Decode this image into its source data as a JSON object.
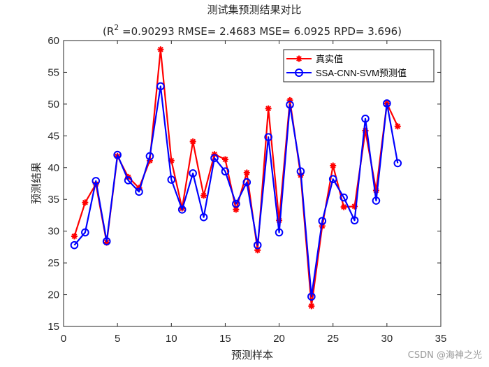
{
  "chart_data": {
    "type": "line",
    "title": "测试集预测结果对比",
    "subtitle_prefix": "(R",
    "subtitle_exp": "2",
    "subtitle_rest": " =0.90293 RMSE= 2.4683 MSE= 6.0925 RPD= 3.696)",
    "xlabel": "预测样本",
    "ylabel": "预测结果",
    "xlim": [
      0,
      35
    ],
    "ylim": [
      15,
      60
    ],
    "xticks": [
      0,
      5,
      10,
      15,
      20,
      25,
      30,
      35
    ],
    "yticks": [
      15,
      20,
      25,
      30,
      35,
      40,
      45,
      50,
      55,
      60
    ],
    "legend_position": "top-right",
    "x": [
      1,
      2,
      3,
      4,
      5,
      6,
      7,
      8,
      9,
      10,
      11,
      12,
      13,
      14,
      15,
      16,
      17,
      18,
      19,
      20,
      21,
      22,
      23,
      24,
      25,
      26,
      27,
      28,
      29,
      30,
      31
    ],
    "series": [
      {
        "name": "真实值",
        "color": "#ff0000",
        "marker": "asterisk",
        "values": [
          29.2,
          34.5,
          37.4,
          28.2,
          41.8,
          38.5,
          36.8,
          41.1,
          58.6,
          41.1,
          33.6,
          44.1,
          35.6,
          42.1,
          41.3,
          33.4,
          39.2,
          27.0,
          49.3,
          31.7,
          50.6,
          38.8,
          18.2,
          30.8,
          40.3,
          33.8,
          33.9,
          45.8,
          36.4,
          50.1,
          46.5
        ]
      },
      {
        "name": "SSA-CNN-SVM预测值",
        "color": "#0000ff",
        "marker": "circle",
        "values": [
          27.8,
          29.8,
          37.9,
          28.4,
          42.0,
          38.0,
          36.2,
          41.8,
          52.8,
          38.1,
          33.4,
          39.1,
          32.2,
          41.5,
          39.4,
          34.3,
          37.7,
          27.8,
          44.8,
          29.8,
          49.9,
          39.4,
          19.7,
          31.6,
          38.2,
          35.3,
          31.7,
          47.7,
          34.8,
          50.1,
          40.7
        ]
      }
    ]
  },
  "watermark": "CSDN @海神之光"
}
